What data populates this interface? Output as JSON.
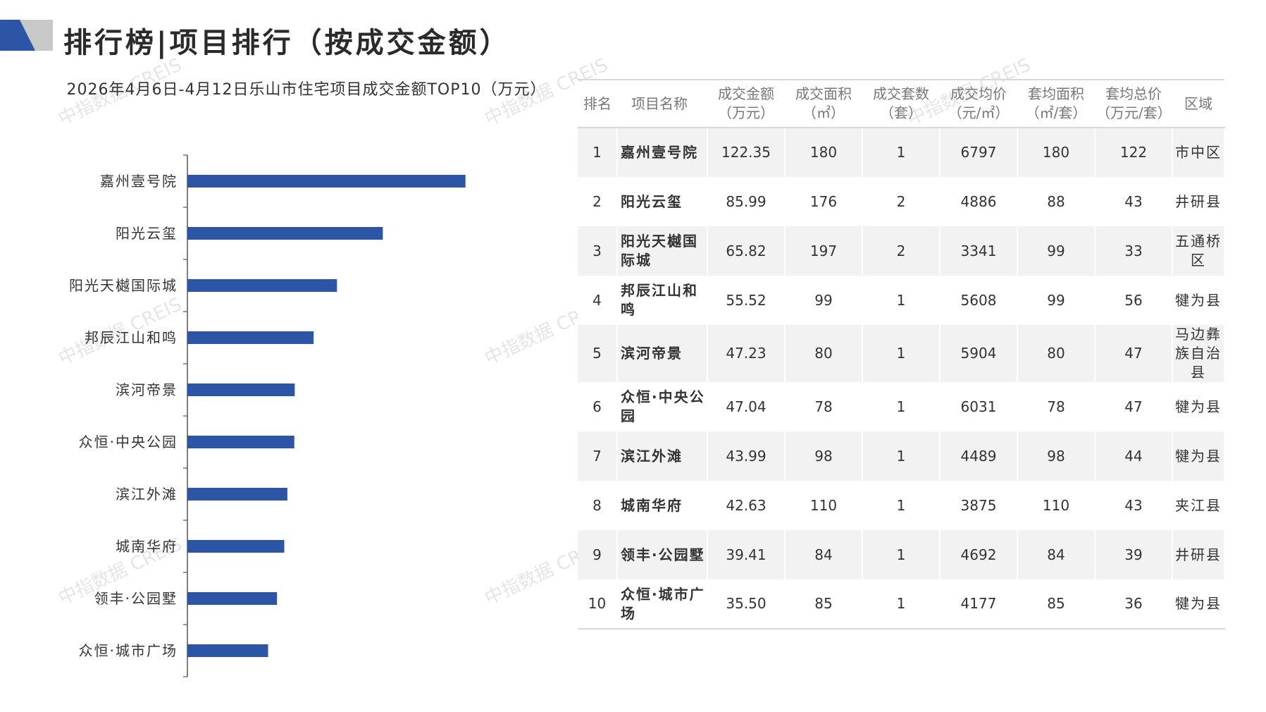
{
  "header": {
    "title": "排行榜|项目排行（按成交金额）"
  },
  "watermark_text": "中指数据 CREIS",
  "colors": {
    "bar": "#2c56a5",
    "logo_dark": "#2c56a5",
    "logo_light": "#c8c8c8",
    "axis": "#555555"
  },
  "chart_data": {
    "type": "bar",
    "orientation": "horizontal",
    "title": "2026年4月6日-4月12日乐山市住宅项目成交金额TOP10（万元）",
    "categories": [
      "嘉州壹号院",
      "阳光云玺",
      "阳光天樾国际城",
      "邦辰江山和鸣",
      "滨河帝景",
      "众恒·中央公园",
      "滨江外滩",
      "城南华府",
      "领丰·公园墅",
      "众恒·城市广场"
    ],
    "values": [
      122.35,
      85.99,
      65.82,
      55.52,
      47.23,
      47.04,
      43.99,
      42.63,
      39.41,
      35.5
    ],
    "xlim": [
      0,
      155
    ],
    "grid": false,
    "legend": "none"
  },
  "table": {
    "headers": [
      "排名",
      "项目名称",
      "成交金额\n（万元）",
      "成交面积\n（㎡）",
      "成交套数\n（套）",
      "成交均价\n（元/㎡）",
      "套均面积\n（㎡/套）",
      "套均总价\n（万元/套）",
      "区域"
    ],
    "rows": [
      [
        "1",
        "嘉州壹号院",
        "122.35",
        "180",
        "1",
        "6797",
        "180",
        "122",
        "市中区"
      ],
      [
        "2",
        "阳光云玺",
        "85.99",
        "176",
        "2",
        "4886",
        "88",
        "43",
        "井研县"
      ],
      [
        "3",
        "阳光天樾国际城",
        "65.82",
        "197",
        "2",
        "3341",
        "99",
        "33",
        "五通桥区"
      ],
      [
        "4",
        "邦辰江山和鸣",
        "55.52",
        "99",
        "1",
        "5608",
        "99",
        "56",
        "犍为县"
      ],
      [
        "5",
        "滨河帝景",
        "47.23",
        "80",
        "1",
        "5904",
        "80",
        "47",
        "马边彝族自治县"
      ],
      [
        "6",
        "众恒·中央公园",
        "47.04",
        "78",
        "1",
        "6031",
        "78",
        "47",
        "犍为县"
      ],
      [
        "7",
        "滨江外滩",
        "43.99",
        "98",
        "1",
        "4489",
        "98",
        "44",
        "犍为县"
      ],
      [
        "8",
        "城南华府",
        "42.63",
        "110",
        "1",
        "3875",
        "110",
        "43",
        "夹江县"
      ],
      [
        "9",
        "领丰·公园墅",
        "39.41",
        "84",
        "1",
        "4692",
        "84",
        "39",
        "井研县"
      ],
      [
        "10",
        "众恒·城市广场",
        "35.50",
        "85",
        "1",
        "4177",
        "85",
        "36",
        "犍为县"
      ]
    ]
  }
}
